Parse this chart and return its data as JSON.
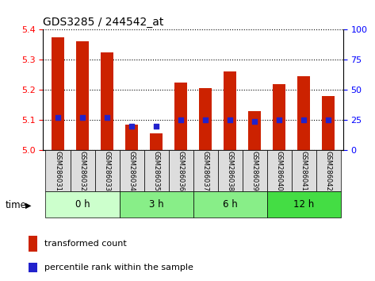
{
  "title": "GDS3285 / 244542_at",
  "samples": [
    "GSM286031",
    "GSM286032",
    "GSM286033",
    "GSM286034",
    "GSM286035",
    "GSM286036",
    "GSM286037",
    "GSM286038",
    "GSM286039",
    "GSM286040",
    "GSM286041",
    "GSM286042"
  ],
  "transformed_counts": [
    5.375,
    5.36,
    5.325,
    5.085,
    5.055,
    5.225,
    5.205,
    5.26,
    5.13,
    5.22,
    5.245,
    5.18
  ],
  "percentile_ranks": [
    27,
    27,
    27,
    20,
    20,
    25,
    25,
    25,
    24,
    25,
    25,
    25
  ],
  "ylim_left": [
    5.0,
    5.4
  ],
  "ylim_right": [
    0,
    100
  ],
  "yticks_left": [
    5.0,
    5.1,
    5.2,
    5.3,
    5.4
  ],
  "yticks_right": [
    0,
    25,
    50,
    75,
    100
  ],
  "bar_color": "#cc2200",
  "dot_color": "#2222cc",
  "bar_width": 0.5,
  "groups": [
    {
      "label": "0 h",
      "start": 0,
      "end": 3,
      "color": "#ccffcc"
    },
    {
      "label": "3 h",
      "start": 3,
      "end": 6,
      "color": "#88ee88"
    },
    {
      "label": "6 h",
      "start": 6,
      "end": 9,
      "color": "#88ee88"
    },
    {
      "label": "12 h",
      "start": 9,
      "end": 12,
      "color": "#44dd44"
    }
  ],
  "time_label": "time",
  "legend_bar_label": "transformed count",
  "legend_dot_label": "percentile rank within the sample",
  "xlabel_area_color": "#dddddd",
  "base_value": 5.0
}
